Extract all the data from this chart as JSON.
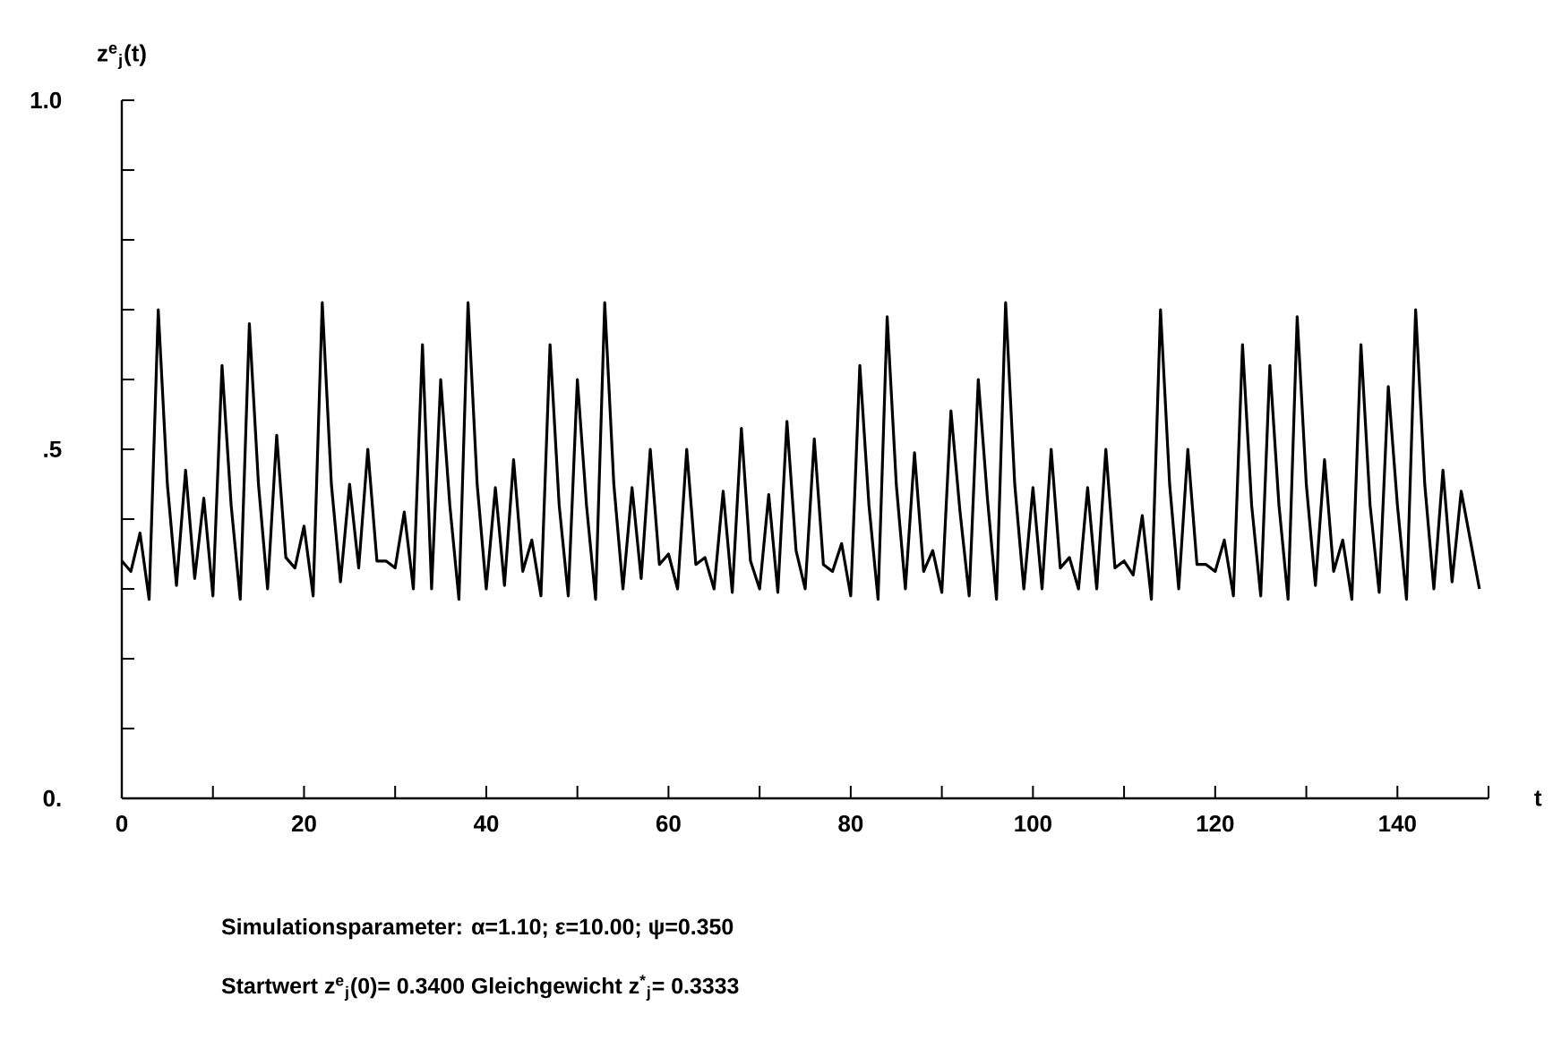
{
  "chart_data": {
    "type": "line",
    "xlabel": "t",
    "ylabel": "z$^{e}$$_{j}$(t)",
    "annotations": [
      "Simulationsparameter: α=1.10; ε=10.00; ψ=0.350",
      "Startwert z$^{e}$$_{j}$(0)= 0.3400   Gleichgewicht z$^{*}$$_{j}$= 0.3333"
    ],
    "x": [
      0,
      1,
      2,
      3,
      4,
      5,
      6,
      7,
      8,
      9,
      10,
      11,
      12,
      13,
      14,
      15,
      16,
      17,
      18,
      19,
      20,
      21,
      22,
      23,
      24,
      25,
      26,
      27,
      28,
      29,
      30,
      31,
      32,
      33,
      34,
      35,
      36,
      37,
      38,
      39,
      40,
      41,
      42,
      43,
      44,
      45,
      46,
      47,
      48,
      49,
      50,
      51,
      52,
      53,
      54,
      55,
      56,
      57,
      58,
      59,
      60,
      61,
      62,
      63,
      64,
      65,
      66,
      67,
      68,
      69,
      70,
      71,
      72,
      73,
      74,
      75,
      76,
      77,
      78,
      79,
      80,
      81,
      82,
      83,
      84,
      85,
      86,
      87,
      88,
      89,
      90,
      91,
      92,
      93,
      94,
      95,
      96,
      97,
      98,
      99,
      100,
      101,
      102,
      103,
      104,
      105,
      106,
      107,
      108,
      109,
      110,
      111,
      112,
      113,
      114,
      115,
      116,
      117,
      118,
      119,
      120,
      121,
      122,
      123,
      124,
      125,
      126,
      127,
      128,
      129,
      130,
      131,
      132,
      133,
      134,
      135,
      136,
      137,
      138,
      139,
      140,
      141,
      142,
      143,
      144,
      145,
      146,
      147,
      148,
      149
    ],
    "values": [
      0.34,
      0.325,
      0.38,
      0.285,
      0.7,
      0.45,
      0.305,
      0.47,
      0.315,
      0.43,
      0.29,
      0.62,
      0.42,
      0.285,
      0.68,
      0.45,
      0.3,
      0.52,
      0.345,
      0.33,
      0.39,
      0.29,
      0.71,
      0.45,
      0.31,
      0.45,
      0.33,
      0.5,
      0.34,
      0.34,
      0.33,
      0.41,
      0.3,
      0.65,
      0.3,
      0.6,
      0.42,
      0.285,
      0.71,
      0.45,
      0.3,
      0.445,
      0.305,
      0.485,
      0.325,
      0.37,
      0.29,
      0.65,
      0.42,
      0.29,
      0.6,
      0.42,
      0.285,
      0.71,
      0.45,
      0.3,
      0.445,
      0.315,
      0.5,
      0.335,
      0.35,
      0.3,
      0.5,
      0.335,
      0.345,
      0.3,
      0.44,
      0.295,
      0.53,
      0.34,
      0.3,
      0.435,
      0.295,
      0.54,
      0.355,
      0.3,
      0.515,
      0.335,
      0.325,
      0.365,
      0.29,
      0.62,
      0.42,
      0.285,
      0.69,
      0.45,
      0.3,
      0.495,
      0.325,
      0.355,
      0.295,
      0.555,
      0.41,
      0.29,
      0.6,
      0.43,
      0.285,
      0.71,
      0.45,
      0.3,
      0.445,
      0.3,
      0.5,
      0.33,
      0.345,
      0.3,
      0.445,
      0.3,
      0.5,
      0.33,
      0.34,
      0.32,
      0.405,
      0.285,
      0.7,
      0.45,
      0.3,
      0.5,
      0.335,
      0.335,
      0.325,
      0.37,
      0.29,
      0.65,
      0.42,
      0.29,
      0.62,
      0.42,
      0.285,
      0.69,
      0.45,
      0.305,
      0.485,
      0.325,
      0.37,
      0.285,
      0.65,
      0.42,
      0.295,
      0.59,
      0.42,
      0.285,
      0.7,
      0.45,
      0.3,
      0.47,
      0.31,
      0.44,
      0.37,
      0.3
    ],
    "color": "#000000",
    "line_style": "solid",
    "marker": "none",
    "xlim": [
      0,
      150
    ],
    "ylim": [
      0,
      1.0
    ],
    "xticks": [
      0,
      {
        "value": 10,
        "label": null
      },
      20,
      {
        "value": 30,
        "label": null
      },
      40,
      {
        "value": 50,
        "label": null
      },
      60,
      {
        "value": 70,
        "label": null
      },
      80,
      {
        "value": 90,
        "label": null
      },
      100,
      {
        "value": 110,
        "label": null
      },
      120,
      {
        "value": 130,
        "label": null
      },
      140,
      {
        "value": 150,
        "label": null
      }
    ],
    "yticks": [
      {
        "value": 0,
        "label": "0."
      },
      {
        "value": 0.1,
        "label": null
      },
      {
        "value": 0.2,
        "label": null
      },
      {
        "value": 0.3,
        "label": null
      },
      {
        "value": 0.4,
        "label": null
      },
      {
        "value": 0.5,
        "label": ".5"
      },
      {
        "value": 0.6,
        "label": null
      },
      {
        "value": 0.7,
        "label": null
      },
      {
        "value": 0.8,
        "label": null
      },
      {
        "value": 0.9,
        "label": null
      },
      {
        "value": 1.0,
        "label": "1.0"
      }
    ]
  }
}
